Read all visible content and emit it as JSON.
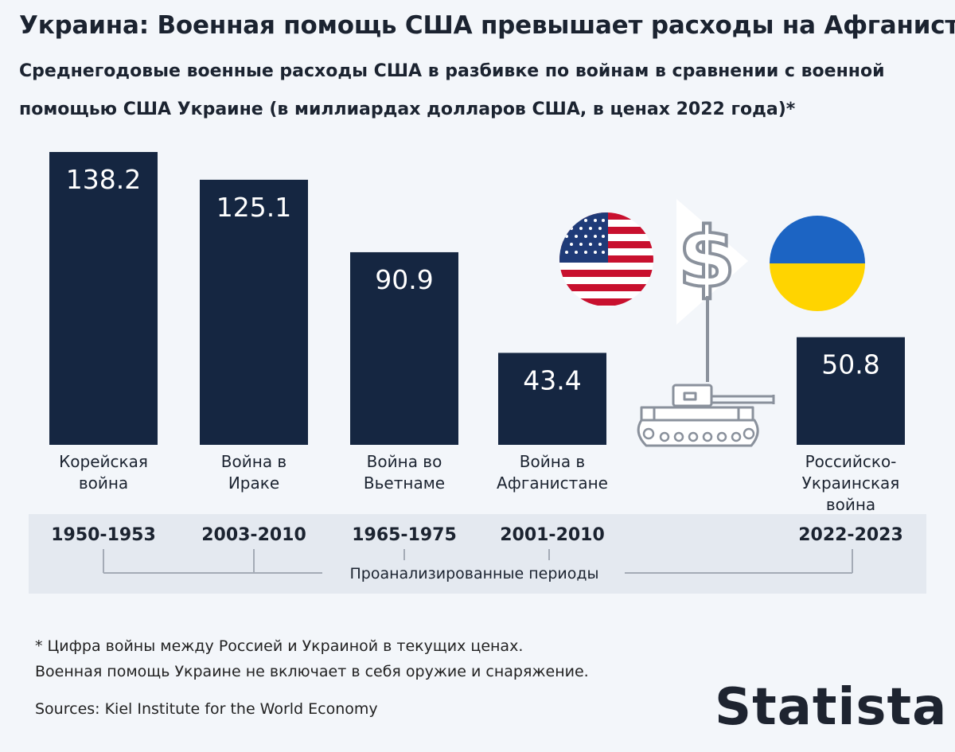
{
  "title": "Украина: Военная помощь США превышает расходы на Афганистан",
  "subtitle": "Среднегодовые военные расходы США в разбивке по войнам в сравнении с военной помощью США Украине (в миллиардах долларов США, в ценах 2022 года)*",
  "colors": {
    "bar": "#152641",
    "bar_label": "#ffffff",
    "timeline_bg": "#e4e9f0",
    "bracket": "#a4abb6"
  },
  "chart_data": {
    "type": "bar",
    "title": "Украина: Военная помощь США превышает расходы на Афганистан",
    "ylabel": "миллиарды долларов США",
    "ylim": [
      0,
      145
    ],
    "grid": false,
    "categories": [
      "Корейская война",
      "Война в Ираке",
      "Война во Вьетнаме",
      "Война в Афганистане",
      "Российско-Украинская война"
    ],
    "values": [
      138.2,
      125.1,
      90.9,
      43.4,
      50.8
    ],
    "value_labels": [
      "138.2",
      "125.1",
      "90.9",
      "43.4",
      "50.8"
    ],
    "category_lines": [
      [
        "Корейская",
        "война"
      ],
      [
        "Война в",
        "Ираке"
      ],
      [
        "Война во",
        "Вьетнаме"
      ],
      [
        "Война в",
        "Афганистане"
      ],
      [
        "Российско-",
        "Украинская",
        "война"
      ]
    ],
    "periods": [
      "1950-1953",
      "2003-2010",
      "1965-1975",
      "2001-2010",
      "2022-2023"
    ],
    "periods_caption": "Проанализированные периоды"
  },
  "illustration": {
    "icons": [
      "us-flag-icon",
      "dollar-arrow-icon",
      "tank-icon",
      "ukraine-flag-icon"
    ]
  },
  "footnote": [
    "* Цифра войны между Россией и Украиной в текущих ценах.",
    "Военная помощь Украине не включает в себя оружие и снаряжение."
  ],
  "source": "Sources: Kiel Institute for the World Economy",
  "logo": "Statista"
}
